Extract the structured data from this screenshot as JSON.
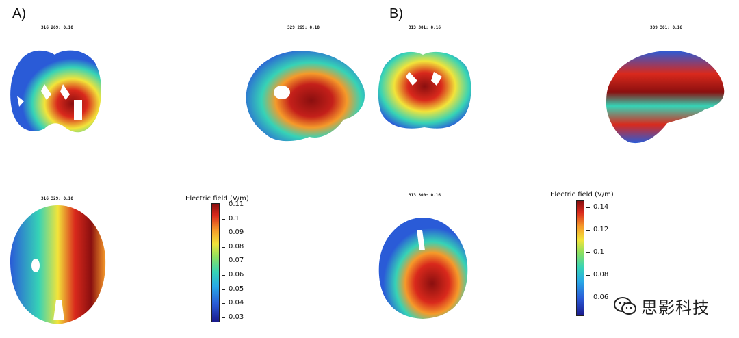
{
  "panels": {
    "A": {
      "label": "A)",
      "slice_titles": [
        "316  269: 0.10",
        "329  269: 0.10",
        "316  329: 0.10"
      ],
      "colorbar": {
        "title": "Electric field (V/m)",
        "ticks": [
          "0.11",
          "0.1",
          "0.09",
          "0.08",
          "0.07",
          "0.06",
          "0.05",
          "0.04",
          "0.03"
        ]
      }
    },
    "B": {
      "label": "B)",
      "slice_titles": [
        "313  301: 0.16",
        "309  301: 0.16",
        "313  309: 0.16"
      ],
      "colorbar": {
        "title": "Electric field (V/m)",
        "ticks": [
          "0.14",
          "0.12",
          "0.1",
          "0.08",
          "0.06"
        ]
      }
    }
  },
  "colormap": [
    "#1a1a8c",
    "#2a5bd7",
    "#28a9e6",
    "#36d3b6",
    "#8ee060",
    "#f2e43a",
    "#f59a2a",
    "#d9291c",
    "#8a0f0f"
  ],
  "watermark": {
    "icon": "wechat-icon",
    "text": "思影科技"
  }
}
